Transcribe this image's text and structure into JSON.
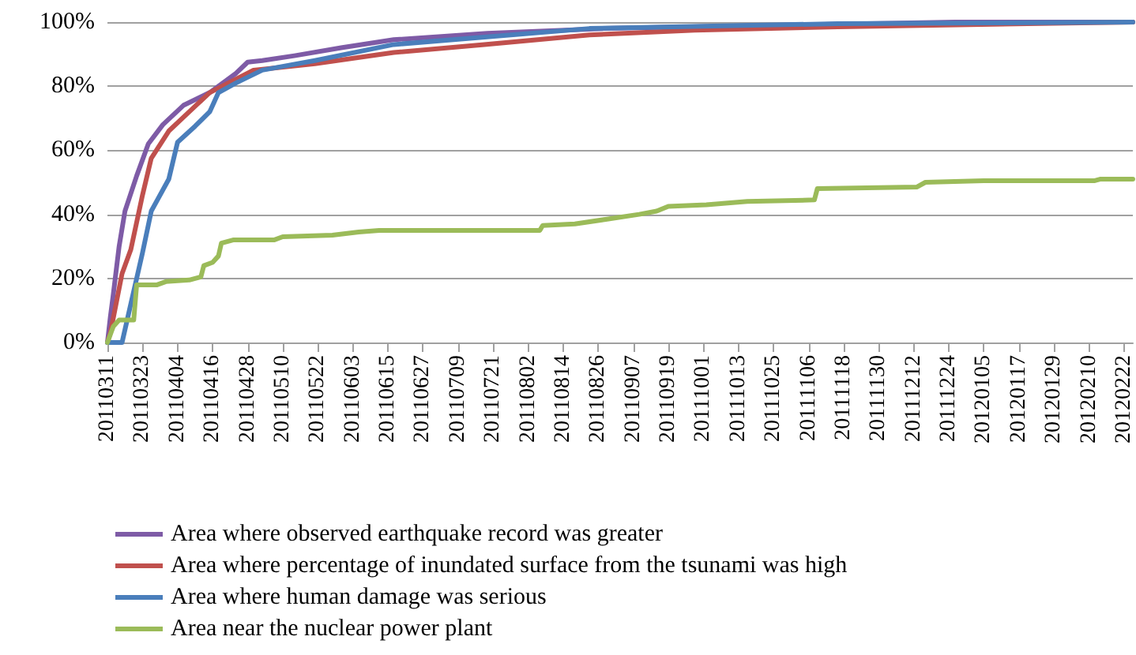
{
  "chart_data": {
    "type": "line",
    "marker": "none",
    "line_style": "solid",
    "grid": "y",
    "legend": "bottom",
    "xlim": [
      "2011-03-11",
      "2012-02-25"
    ],
    "xticks": [
      {
        "value": "2011-03-11",
        "label": "20110311"
      },
      {
        "value": "2011-03-23",
        "label": "20110323"
      },
      {
        "value": "2011-04-04",
        "label": "20110404"
      },
      {
        "value": "2011-04-16",
        "label": "20110416"
      },
      {
        "value": "2011-04-28",
        "label": "20110428"
      },
      {
        "value": "2011-05-10",
        "label": "20110510"
      },
      {
        "value": "2011-05-22",
        "label": "20110522"
      },
      {
        "value": "2011-06-03",
        "label": "20110603"
      },
      {
        "value": "2011-06-15",
        "label": "20110615"
      },
      {
        "value": "2011-06-27",
        "label": "20110627"
      },
      {
        "value": "2011-07-09",
        "label": "20110709"
      },
      {
        "value": "2011-07-21",
        "label": "20110721"
      },
      {
        "value": "2011-08-02",
        "label": "20110802"
      },
      {
        "value": "2011-08-14",
        "label": "20110814"
      },
      {
        "value": "2011-08-26",
        "label": "20110826"
      },
      {
        "value": "2011-09-07",
        "label": "20110907"
      },
      {
        "value": "2011-09-19",
        "label": "20110919"
      },
      {
        "value": "2011-10-01",
        "label": "20111001"
      },
      {
        "value": "2011-10-13",
        "label": "20111013"
      },
      {
        "value": "2011-10-25",
        "label": "20111025"
      },
      {
        "value": "2011-11-06",
        "label": "20111106"
      },
      {
        "value": "2011-11-18",
        "label": "20111118"
      },
      {
        "value": "2011-11-30",
        "label": "20111130"
      },
      {
        "value": "2011-12-12",
        "label": "20111212"
      },
      {
        "value": "2011-12-24",
        "label": "20111224"
      },
      {
        "value": "2012-01-05",
        "label": "20120105"
      },
      {
        "value": "2012-01-17",
        "label": "20120117"
      },
      {
        "value": "2012-01-29",
        "label": "20120129"
      },
      {
        "value": "2012-02-10",
        "label": "20120210"
      },
      {
        "value": "2012-02-22",
        "label": "20120222"
      }
    ],
    "ylim": [
      0,
      100
    ],
    "yticks": [
      {
        "value": 0,
        "label": "0%"
      },
      {
        "value": 20,
        "label": "20%"
      },
      {
        "value": 40,
        "label": "40%"
      },
      {
        "value": 60,
        "label": "60%"
      },
      {
        "value": 80,
        "label": "80%"
      },
      {
        "value": 100,
        "label": "100%"
      }
    ],
    "series": [
      {
        "name": "Area where observed earthquake record was greater",
        "color": "#7e5ba6",
        "x": [
          "2011-03-11",
          "2011-03-12",
          "2011-03-13",
          "2011-03-15",
          "2011-03-17",
          "2011-03-21",
          "2011-03-25",
          "2011-03-30",
          "2011-04-06",
          "2011-04-15",
          "2011-04-24",
          "2011-04-28",
          "2011-05-03",
          "2011-05-14",
          "2011-05-30",
          "2011-06-17",
          "2011-07-19",
          "2011-08-28",
          "2011-10-27",
          "2011-12-26",
          "2012-02-25"
        ],
        "values": [
          0,
          8,
          15,
          30,
          41,
          52,
          62,
          68,
          74,
          78,
          84,
          87.5,
          88,
          89.5,
          92,
          94.5,
          96.5,
          98,
          99,
          100,
          100
        ]
      },
      {
        "name": "Area where percentage of inundated surface from the tsunami was high",
        "color": "#c0504d",
        "x": [
          "2011-03-11",
          "2011-03-12",
          "2011-03-16",
          "2011-03-19",
          "2011-03-23",
          "2011-03-26",
          "2011-04-01",
          "2011-04-08",
          "2011-04-15",
          "2011-04-30",
          "2011-05-21",
          "2011-06-17",
          "2011-07-18",
          "2011-08-23",
          "2011-09-28",
          "2011-11-16",
          "2012-01-20",
          "2012-02-25"
        ],
        "values": [
          0,
          3,
          21.5,
          29,
          46,
          57.5,
          66,
          72,
          78,
          85,
          87,
          90.5,
          93,
          96,
          97.5,
          98.5,
          99.5,
          100
        ]
      },
      {
        "name": "Area where human damage was serious",
        "color": "#4a7ebb",
        "x": [
          "2011-03-11",
          "2011-03-16",
          "2011-03-19",
          "2011-03-23",
          "2011-03-26",
          "2011-04-01",
          "2011-04-04",
          "2011-04-10",
          "2011-04-15",
          "2011-04-18",
          "2011-04-24",
          "2011-05-03",
          "2011-05-21",
          "2011-06-17",
          "2011-08-23",
          "2011-11-16",
          "2012-02-25"
        ],
        "values": [
          0,
          0,
          12,
          28,
          41,
          51,
          62.5,
          67.5,
          72,
          78,
          81,
          85,
          88,
          93,
          98,
          99.5,
          100
        ]
      },
      {
        "name": "Area near the nuclear power plant",
        "color": "#9bbb59",
        "x": [
          "2011-03-11",
          "2011-03-13",
          "2011-03-15",
          "2011-03-20",
          "2011-03-21",
          "2011-03-28",
          "2011-03-31",
          "2011-04-08",
          "2011-04-12",
          "2011-04-13",
          "2011-04-16",
          "2011-04-18",
          "2011-04-19",
          "2011-04-23",
          "2011-05-07",
          "2011-05-10",
          "2011-05-27",
          "2011-06-05",
          "2011-06-12",
          "2011-08-06",
          "2011-08-07",
          "2011-08-18",
          "2011-08-29",
          "2011-09-09",
          "2011-09-15",
          "2011-09-19",
          "2011-10-02",
          "2011-10-16",
          "2011-11-08",
          "2011-11-09",
          "2011-12-13",
          "2011-12-16",
          "2012-01-05",
          "2012-02-12",
          "2012-02-14",
          "2012-02-25"
        ],
        "values": [
          0,
          5,
          7,
          7,
          18,
          18,
          19,
          19.5,
          20.5,
          24,
          25,
          27,
          31,
          32,
          32,
          33,
          33.5,
          34.5,
          35,
          35,
          36.5,
          37,
          38.5,
          40,
          41,
          42.5,
          43,
          44,
          44.5,
          48,
          48.5,
          50,
          50.5,
          50.5,
          51,
          51
        ]
      }
    ]
  }
}
